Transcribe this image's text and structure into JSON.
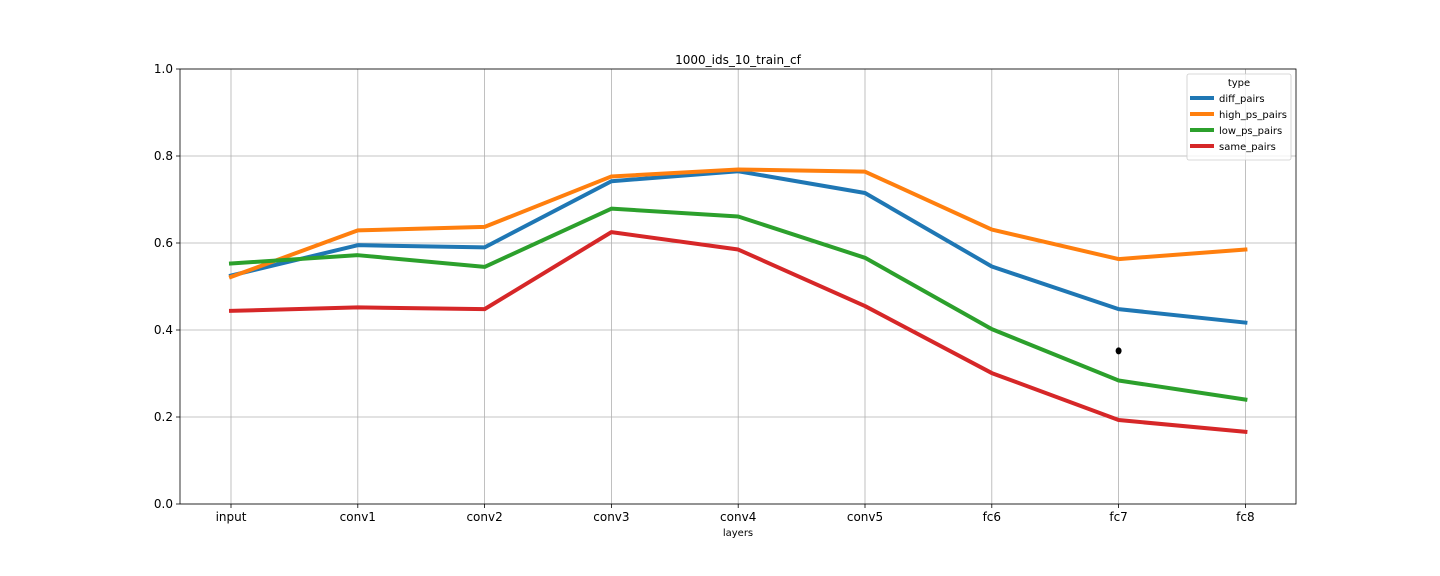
{
  "chart_data": {
    "type": "line",
    "title": "1000_ids_10_train_cf",
    "xlabel": "layers",
    "ylabel": "",
    "categories": [
      "input",
      "conv1",
      "conv2",
      "conv3",
      "conv4",
      "conv5",
      "fc6",
      "fc7",
      "fc8"
    ],
    "ylim": [
      0,
      1.0
    ],
    "yticks": [
      "0.0",
      "0.2",
      "0.4",
      "0.6",
      "0.8",
      "1.0"
    ],
    "grid": true,
    "legend": {
      "title": "type",
      "placement": "top-right"
    },
    "series": [
      {
        "name": "diff_pairs",
        "color": "#1f77b4",
        "values": [
          0.525,
          0.595,
          0.59,
          0.742,
          0.765,
          0.715,
          0.546,
          0.448,
          0.417
        ]
      },
      {
        "name": "high_ps_pairs",
        "color": "#ff7f0e",
        "values": [
          0.522,
          0.629,
          0.637,
          0.753,
          0.769,
          0.764,
          0.631,
          0.563,
          0.585
        ]
      },
      {
        "name": "low_ps_pairs",
        "color": "#2ca02c",
        "values": [
          0.553,
          0.572,
          0.545,
          0.679,
          0.661,
          0.566,
          0.402,
          0.284,
          0.24
        ]
      },
      {
        "name": "same_pairs",
        "color": "#d62728",
        "values": [
          0.444,
          0.452,
          0.448,
          0.625,
          0.585,
          0.455,
          0.301,
          0.193,
          0.166
        ]
      }
    ],
    "annotations": [
      {
        "kind": "point",
        "x": "fc7",
        "y": 0.352,
        "color": "#000000"
      }
    ]
  }
}
